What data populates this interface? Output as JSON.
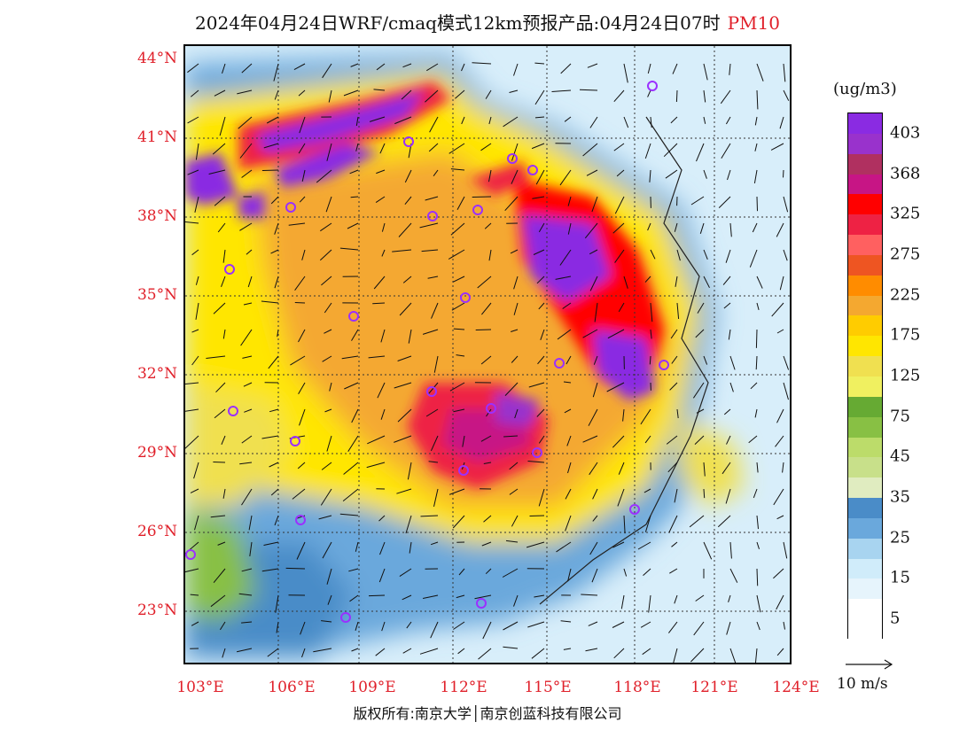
{
  "title": {
    "main": "2024年04月24日WRF/cmaq模式12km预报产品:04月24日07时",
    "pollutant": "PM10"
  },
  "axes": {
    "latitudes": [
      "44°N",
      "41°N",
      "38°N",
      "35°N",
      "32°N",
      "29°N",
      "26°N",
      "23°N"
    ],
    "longitudes": [
      "103°E",
      "106°E",
      "109°E",
      "112°E",
      "115°E",
      "118°E",
      "121°E",
      "124°E"
    ],
    "lat_range": [
      21,
      44.5
    ],
    "lon_range": [
      102.9,
      124
    ]
  },
  "colorbar": {
    "unit": "(ug/m3)",
    "labels": [
      "403",
      "368",
      "325",
      "275",
      "225",
      "175",
      "125",
      "75",
      "45",
      "35",
      "25",
      "15",
      "5"
    ],
    "colors": [
      "#8a2be2",
      "#9932cc",
      "#b03060",
      "#c71585",
      "#ff0000",
      "#ee2244",
      "#ff6060",
      "#ee5522",
      "#ff8c00",
      "#f4a830",
      "#ffcc00",
      "#ffe600",
      "#f0e050",
      "#f0f060",
      "#66aa33",
      "#88c044",
      "#bcdc6a",
      "#c8e08a",
      "#e0ecc0",
      "#4a8cc8",
      "#6aa8dc",
      "#a8d4f0",
      "#d0ecfa",
      "#e6f4fc",
      "#ffffff",
      "#ffffff"
    ]
  },
  "wind_reference": {
    "label": "10 m/s"
  },
  "copyright": "版权所有:南京大学│南京创蓝科技有限公司",
  "city_markers_color": "#9b30ff"
}
